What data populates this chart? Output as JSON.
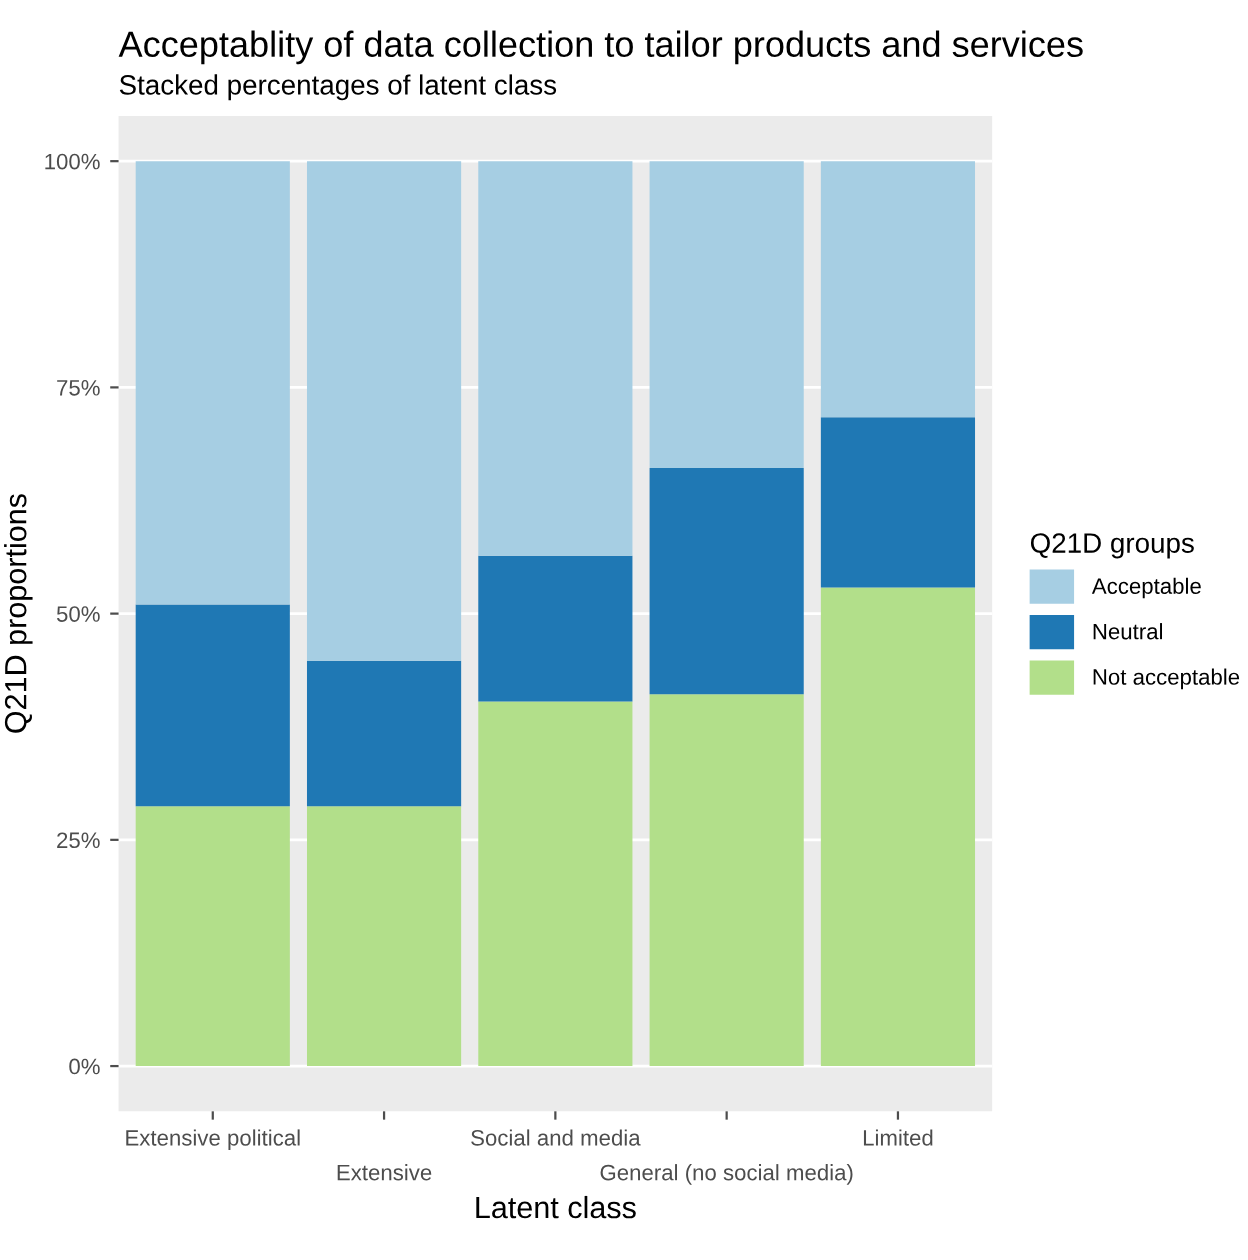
{
  "chart_data": {
    "type": "bar",
    "title": "Acceptablity of data collection to tailor products and services",
    "subtitle": "Stacked percentages of latent class",
    "xlabel": "Latent class",
    "ylabel": "Q21D proportions",
    "legend_title": "Q21D groups",
    "categories": [
      "Extensive political",
      "Extensive",
      "Social and media",
      "General (no social media)",
      "Limited"
    ],
    "stacked": true,
    "series": [
      {
        "name": "Not acceptable",
        "color": "#b2df8a",
        "values": [
          28.7,
          28.7,
          40.3,
          41.1,
          52.9
        ]
      },
      {
        "name": "Neutral",
        "color": "#1f78b4",
        "values": [
          22.3,
          16.1,
          16.1,
          25.0,
          18.8
        ]
      },
      {
        "name": "Acceptable",
        "color": "#a6cee3",
        "values": [
          49.0,
          55.2,
          43.6,
          33.9,
          28.3
        ]
      }
    ],
    "ylim": [
      -5,
      105
    ],
    "yticks": [
      {
        "value": 0,
        "label": "0%"
      },
      {
        "value": 25,
        "label": "25%"
      },
      {
        "value": 50,
        "label": "50%"
      },
      {
        "value": 75,
        "label": "75%"
      },
      {
        "value": 100,
        "label": "100%"
      }
    ],
    "grid": "y",
    "legend": "right"
  }
}
